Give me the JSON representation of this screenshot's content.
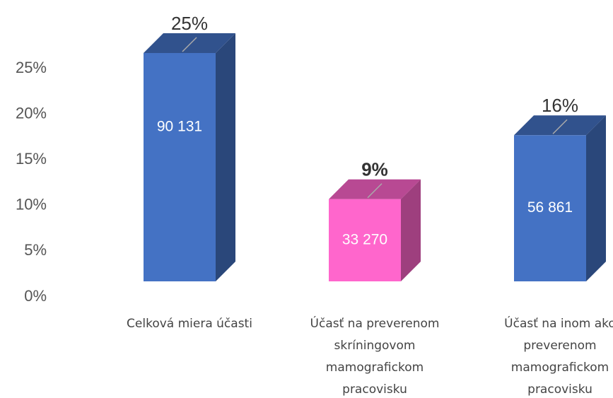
{
  "chart_data": {
    "type": "bar3d",
    "categories": [
      "Celková miera účasti",
      "Účasť na preverenom skríningovom mamografickom pracovisku",
      "Účasť na inom ako preverenom mamografickom pracovisku"
    ],
    "values": [
      25,
      9,
      16
    ],
    "value_labels": [
      "25%",
      "9%",
      "16%"
    ],
    "bold_labels": [
      false,
      true,
      false
    ],
    "inner_labels": [
      "90 131",
      "33 270",
      "56 861"
    ],
    "colors": [
      "#4472c4",
      "#ff66cc",
      "#4472c4"
    ],
    "ylim": [
      0,
      25
    ],
    "yticks": [
      {
        "value": 0,
        "label": "0%"
      },
      {
        "value": 5,
        "label": "5%"
      },
      {
        "value": 10,
        "label": "10%"
      },
      {
        "value": 15,
        "label": "15%"
      },
      {
        "value": 20,
        "label": "20%"
      },
      {
        "value": 25,
        "label": "25%"
      }
    ],
    "grid": false
  }
}
